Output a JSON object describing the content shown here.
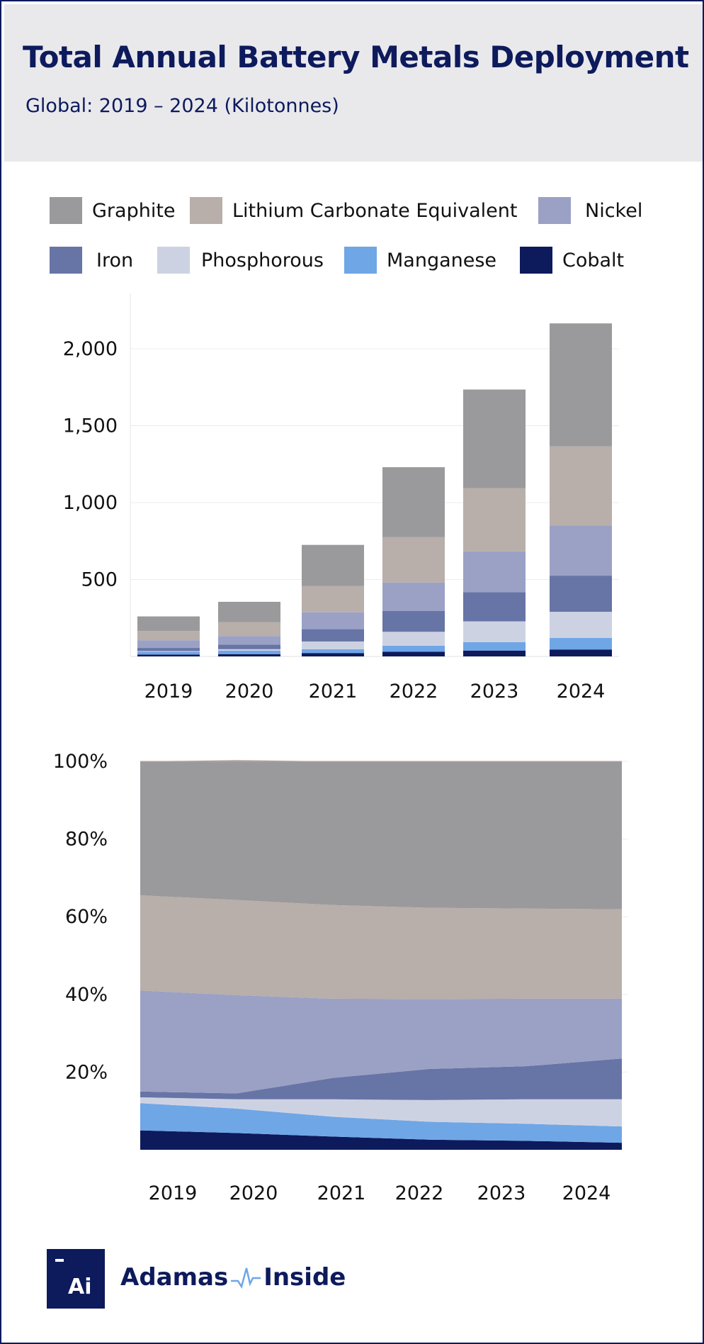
{
  "header": {
    "title": "Total Annual Battery Metals Deployment",
    "subtitle": "Global: 2019 – 2024 (Kilotonnes)"
  },
  "legend": [
    {
      "name": "Graphite",
      "color": "#9a9a9c"
    },
    {
      "name": "Lithium Carbonate Equivalent",
      "color": "#b8aeaa"
    },
    {
      "name": "Nickel",
      "color": "#9aa1c5"
    },
    {
      "name": "Iron",
      "color": "#6774a6"
    },
    {
      "name": "Phosphorous",
      "color": "#cdd2e3"
    },
    {
      "name": "Manganese",
      "color": "#6fa6e6"
    },
    {
      "name": "Cobalt",
      "color": "#0d1a5c"
    }
  ],
  "chart_data": [
    {
      "type": "bar",
      "stacked": true,
      "categories": [
        "2019",
        "2020",
        "2021",
        "2022",
        "2023",
        "2024"
      ],
      "ytick_labels": [
        "2,000",
        "1,500",
        "1,000",
        "500"
      ],
      "ylim": [
        0,
        2300
      ],
      "series": [
        {
          "name": "Cobalt",
          "values": [
            12,
            15,
            22,
            30,
            38,
            45
          ]
        },
        {
          "name": "Manganese",
          "values": [
            18,
            22,
            25,
            40,
            55,
            75
          ]
        },
        {
          "name": "Phosphorous",
          "values": [
            5,
            10,
            50,
            90,
            135,
            170
          ]
        },
        {
          "name": "Iron",
          "values": [
            20,
            30,
            80,
            135,
            190,
            235
          ]
        },
        {
          "name": "Nickel",
          "values": [
            50,
            55,
            110,
            185,
            265,
            325
          ]
        },
        {
          "name": "Lithium Carbonate Equivalent",
          "values": [
            60,
            90,
            170,
            295,
            410,
            515
          ]
        },
        {
          "name": "Graphite",
          "values": [
            95,
            133,
            268,
            455,
            642,
            800
          ]
        }
      ]
    },
    {
      "type": "area",
      "stacked": true,
      "normalized": true,
      "categories": [
        "2019",
        "2020",
        "2021",
        "2022",
        "2023",
        "2024"
      ],
      "ytick_labels": [
        "100%",
        "80%",
        "60%",
        "40%",
        "20%"
      ],
      "ylim": [
        0,
        100
      ],
      "series": [
        {
          "name": "Cobalt",
          "values": [
            5,
            4.3,
            3.4,
            2.6,
            2.3,
            1.8
          ]
        },
        {
          "name": "Manganese",
          "values": [
            7,
            6.3,
            5.1,
            4.6,
            4.4,
            4.2
          ]
        },
        {
          "name": "Phosphorous",
          "values": [
            1.5,
            2.4,
            4.5,
            5.6,
            6.3,
            7.0
          ]
        },
        {
          "name": "Iron",
          "values": [
            1.5,
            1.5,
            5.5,
            8.0,
            8.5,
            10.5
          ]
        },
        {
          "name": "Nickel",
          "values": [
            26,
            25.3,
            20.4,
            18.0,
            17.4,
            15.4
          ]
        },
        {
          "name": "Lithium Carbonate Equivalent",
          "values": [
            24.5,
            24.5,
            24.1,
            23.5,
            23.2,
            23.0
          ]
        },
        {
          "name": "Graphite",
          "values": [
            34.5,
            36.0,
            37.0,
            37.7,
            37.9,
            38.1
          ]
        }
      ]
    }
  ],
  "footer": {
    "logo_text": "Ai",
    "brand_left": "Adamas",
    "brand_right": "Inside"
  }
}
